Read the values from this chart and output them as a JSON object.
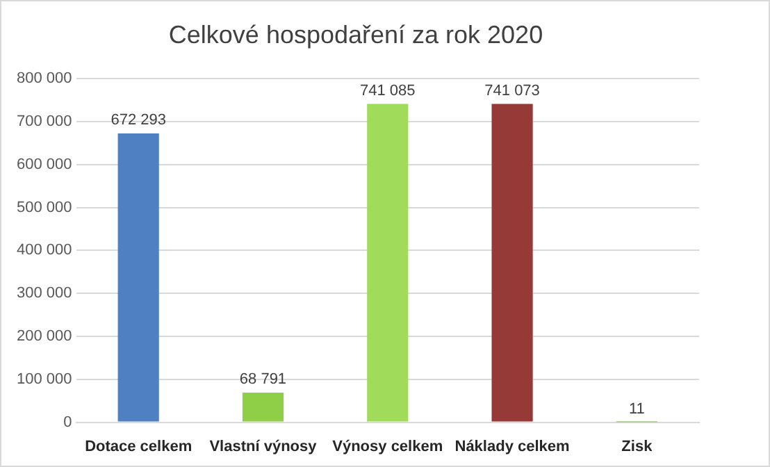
{
  "chart_data": {
    "type": "bar",
    "title": "Celkové hospodaření za rok 2020",
    "categories": [
      "Dotace celkem",
      "Vlastní výnosy",
      "Výnosy celkem",
      "Náklady celkem",
      "Zisk"
    ],
    "values": [
      672293,
      68791,
      741085,
      741073,
      11
    ],
    "colors": [
      "#4f81c2",
      "#8fcf48",
      "#a0dc5a",
      "#953a36",
      "#6aa23c"
    ],
    "value_labels": [
      "672 293",
      "68 791",
      "741 085",
      "741 073",
      "11"
    ],
    "ylim": [
      0,
      800000
    ],
    "yticks": [
      {
        "value": 0,
        "label": "0"
      },
      {
        "value": 100000,
        "label": "100 000"
      },
      {
        "value": 200000,
        "label": "200 000"
      },
      {
        "value": 300000,
        "label": "300 000"
      },
      {
        "value": 400000,
        "label": "400 000"
      },
      {
        "value": 500000,
        "label": "500 000"
      },
      {
        "value": 600000,
        "label": "600 000"
      },
      {
        "value": 700000,
        "label": "700 000"
      },
      {
        "value": 800000,
        "label": "800 000"
      }
    ],
    "grid": "y",
    "legend": false
  }
}
